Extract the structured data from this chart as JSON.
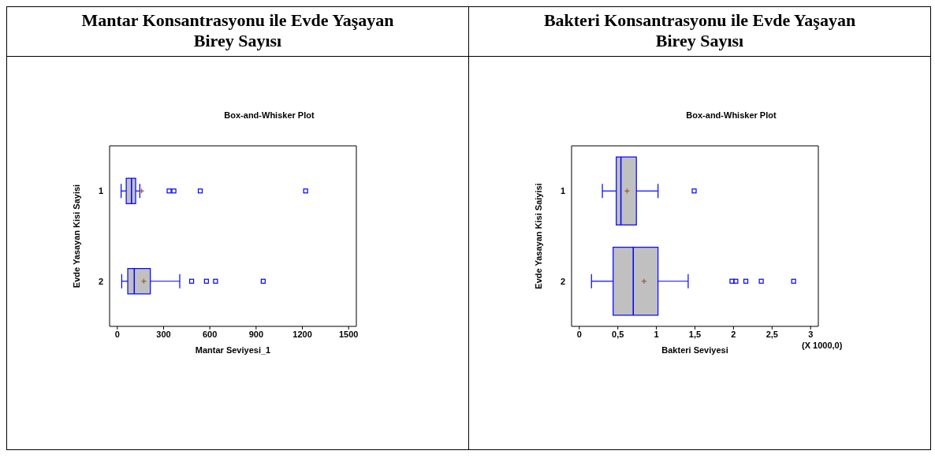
{
  "chart_data": [
    {
      "type": "box",
      "orientation": "horizontal",
      "title": "Mantar Konsantrasyonu ile Evde Yaşayan Birey Sayısı",
      "subtitle": "Box-and-Whisker Plot",
      "xlabel": "Mantar Seviyesi_1",
      "ylabel": "Evde Yasayan Kisi Sayisi",
      "categories": [
        "1",
        "2"
      ],
      "color": "#c0c0c0",
      "boxes": [
        {
          "low": 25,
          "q1": 58,
          "median": 92,
          "q3": 119,
          "high": 146,
          "mean": 158,
          "outliers": [
            336,
            367,
            538,
            1221
          ]
        },
        {
          "low": 29,
          "q1": 68,
          "median": 110,
          "q3": 214,
          "high": 404,
          "mean": 172,
          "outliers": [
            482,
            578,
            637,
            946
          ]
        }
      ],
      "xlim": [
        -50,
        1550
      ],
      "xticks": [
        0,
        300,
        600,
        900,
        1200,
        1500
      ],
      "grid": false,
      "legend": false
    },
    {
      "type": "box",
      "orientation": "horizontal",
      "title": "Bakteri Konsantrasyonu ile Evde Yaşayan Birey Sayısı",
      "subtitle": "Box-and-Whisker Plot",
      "xlabel": "Bakteri Seviyesi",
      "ylabel": "Evde Yasayan Kisi Saiyisi",
      "categories": [
        "1",
        "2"
      ],
      "color": "#c0c0c0",
      "boxes": [
        {
          "low": 0.3,
          "q1": 0.48,
          "median": 0.54,
          "q3": 0.74,
          "high": 1.02,
          "mean": 0.62,
          "outliers": [
            1.49
          ]
        },
        {
          "low": 0.16,
          "q1": 0.44,
          "median": 0.7,
          "q3": 1.02,
          "high": 1.41,
          "mean": 0.84,
          "outliers": [
            1.98,
            2.03,
            2.16,
            2.36,
            2.78
          ]
        }
      ],
      "xlim": [
        -0.1,
        3.1
      ],
      "xticks": [
        0,
        {
          "value": 0.5,
          "label": "0,5"
        },
        1,
        {
          "value": 1.5,
          "label": "1,5"
        },
        2,
        {
          "value": 2.5,
          "label": "2,5"
        },
        3
      ],
      "annotations": [
        "(X 1000,0)"
      ],
      "grid": false,
      "legend": false
    }
  ]
}
